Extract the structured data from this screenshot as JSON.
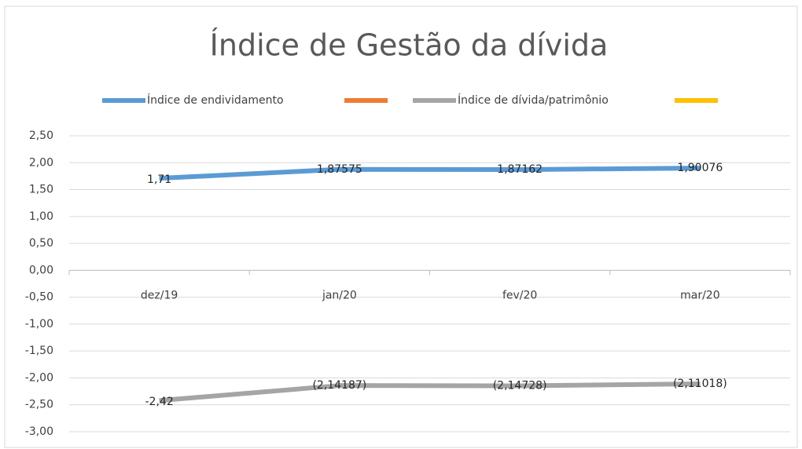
{
  "chart_data": {
    "type": "line",
    "title": "Índice de Gestão da dívida",
    "categories": [
      "dez/19",
      "jan/20",
      "fev/20",
      "mar/20"
    ],
    "series": [
      {
        "name": "Índice de endividamento",
        "color": "#5b9bd5",
        "values": [
          1.71,
          1.87575,
          1.87162,
          1.90076
        ],
        "value_labels": [
          "1,71",
          "1,87575",
          "1,87162",
          "1,90076"
        ]
      },
      {
        "color": "#ed7d31",
        "values": [
          null,
          null,
          null,
          null
        ]
      },
      {
        "name": "Índice de dívida/patrimônio",
        "color": "#a5a5a5",
        "values": [
          -2.42,
          -2.14187,
          -2.14728,
          -2.11018
        ],
        "value_labels": [
          "-2,42",
          "(2,14187)",
          "(2,14728)",
          "(2,11018)"
        ]
      },
      {
        "color": "#ffc000",
        "values": [
          null,
          null,
          null,
          null
        ]
      }
    ],
    "ylim": [
      -3,
      2.5
    ],
    "yticks": [
      {
        "value": 2.5,
        "label": "2,50"
      },
      {
        "value": 2,
        "label": "2,00"
      },
      {
        "value": 1.5,
        "label": "1,50"
      },
      {
        "value": 1,
        "label": "1,00"
      },
      {
        "value": 0.5,
        "label": "0,50"
      },
      {
        "value": 0,
        "label": "0,00"
      },
      {
        "value": -0.5,
        "label": "-0,50"
      },
      {
        "value": -1,
        "label": "-1,00"
      },
      {
        "value": -1.5,
        "label": "-1,50"
      },
      {
        "value": -2,
        "label": "-2,00"
      },
      {
        "value": -2.5,
        "label": "-2,50"
      },
      {
        "value": -3,
        "label": "-3,00"
      }
    ],
    "grid": true,
    "legend": "top"
  }
}
